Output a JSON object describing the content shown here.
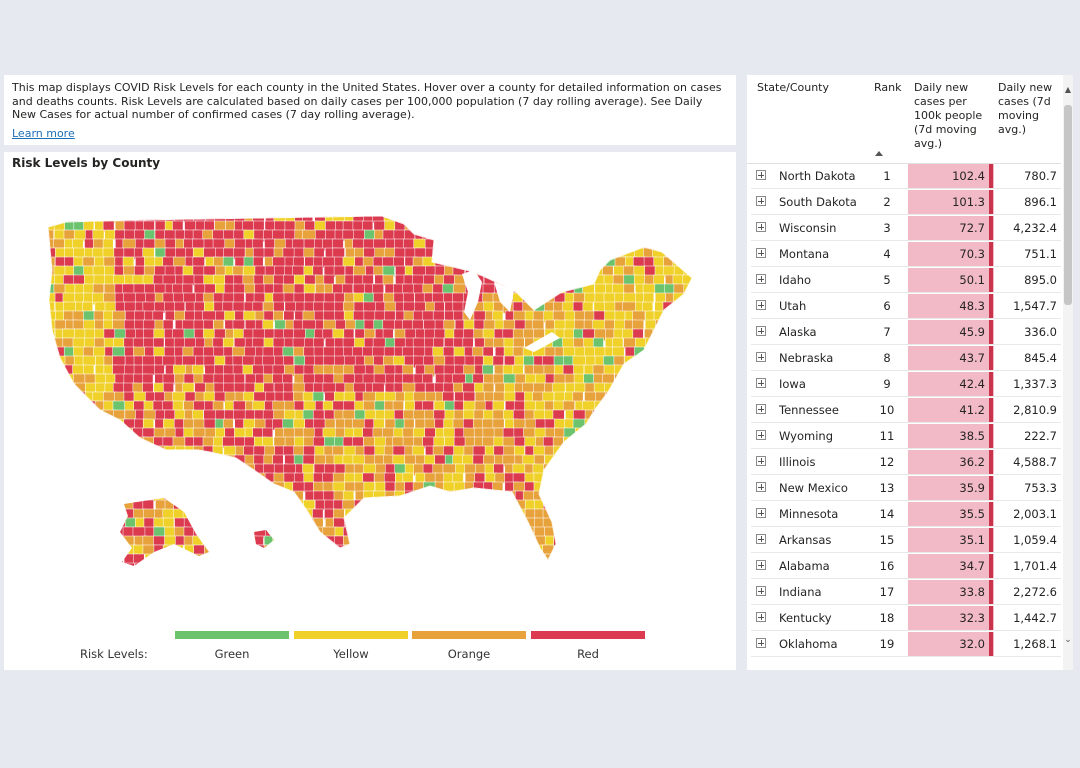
{
  "description": {
    "text": "This map displays COVID Risk Levels for each county in the United States. Hover over a county for detailed information on cases and deaths counts. Risk Levels are calculated based on daily cases per 100,000 population (7 day rolling average). See Daily New Cases for actual number of confirmed cases (7 day rolling average).",
    "learn_more": "Learn more"
  },
  "map": {
    "title": "Risk Levels by County",
    "legend_label": "Risk Levels:",
    "legend": [
      {
        "name": "Green",
        "color": "#6cc36e"
      },
      {
        "name": "Yellow",
        "color": "#f0d12a"
      },
      {
        "name": "Orange",
        "color": "#e8a23c"
      },
      {
        "name": "Red",
        "color": "#db3a4f"
      }
    ]
  },
  "table": {
    "headers": {
      "state": "State/County",
      "rank": "Rank",
      "rate": [
        "Daily new",
        "cases per",
        "100k people",
        "(7d moving",
        "avg.)"
      ],
      "cases": [
        "Daily new",
        "cases (7d",
        "moving",
        "avg.)"
      ]
    },
    "rows": [
      {
        "name": "North Dakota",
        "rank": "1",
        "rate": "102.4",
        "cases": "780.7"
      },
      {
        "name": "South Dakota",
        "rank": "2",
        "rate": "101.3",
        "cases": "896.1"
      },
      {
        "name": "Wisconsin",
        "rank": "3",
        "rate": "72.7",
        "cases": "4,232.4"
      },
      {
        "name": "Montana",
        "rank": "4",
        "rate": "70.3",
        "cases": "751.1"
      },
      {
        "name": "Idaho",
        "rank": "5",
        "rate": "50.1",
        "cases": "895.0"
      },
      {
        "name": "Utah",
        "rank": "6",
        "rate": "48.3",
        "cases": "1,547.7"
      },
      {
        "name": "Alaska",
        "rank": "7",
        "rate": "45.9",
        "cases": "336.0"
      },
      {
        "name": "Nebraska",
        "rank": "8",
        "rate": "43.7",
        "cases": "845.4"
      },
      {
        "name": "Iowa",
        "rank": "9",
        "rate": "42.4",
        "cases": "1,337.3"
      },
      {
        "name": "Tennessee",
        "rank": "10",
        "rate": "41.2",
        "cases": "2,810.9"
      },
      {
        "name": "Wyoming",
        "rank": "11",
        "rate": "38.5",
        "cases": "222.7"
      },
      {
        "name": "Illinois",
        "rank": "12",
        "rate": "36.2",
        "cases": "4,588.7"
      },
      {
        "name": "New Mexico",
        "rank": "13",
        "rate": "35.9",
        "cases": "753.3"
      },
      {
        "name": "Minnesota",
        "rank": "14",
        "rate": "35.5",
        "cases": "2,003.1"
      },
      {
        "name": "Arkansas",
        "rank": "15",
        "rate": "35.1",
        "cases": "1,059.4"
      },
      {
        "name": "Alabama",
        "rank": "16",
        "rate": "34.7",
        "cases": "1,701.4"
      },
      {
        "name": "Indiana",
        "rank": "17",
        "rate": "33.8",
        "cases": "2,272.6"
      },
      {
        "name": "Kentucky",
        "rank": "18",
        "rate": "32.3",
        "cases": "1,442.7"
      },
      {
        "name": "Oklahoma",
        "rank": "19",
        "rate": "32.0",
        "cases": "1,268.1"
      }
    ]
  }
}
